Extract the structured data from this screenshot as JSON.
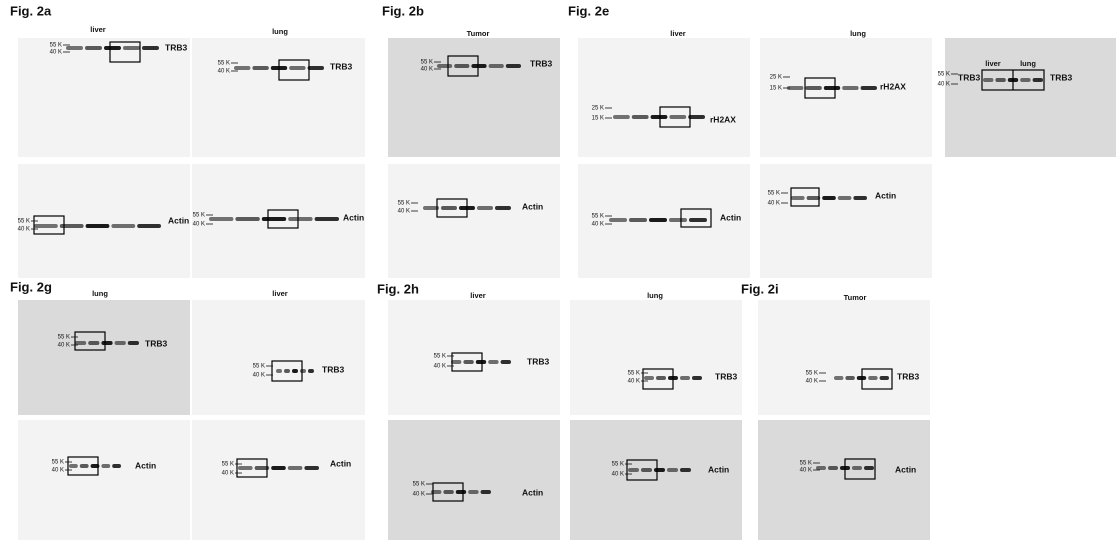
{
  "figures": [
    {
      "label": "Fig. 2a",
      "panels": [
        {
          "title": "liver",
          "markers": [
            "55 K",
            "40 K"
          ],
          "labels": [
            "TRB3"
          ]
        },
        {
          "title": "lung",
          "markers": [
            "55 K",
            "40 K"
          ],
          "labels": [
            "TRB3"
          ]
        },
        {
          "markers": [
            "55 K",
            "40 K"
          ],
          "labels": [
            "Actin"
          ]
        },
        {
          "markers": [
            "55 K",
            "40 K"
          ],
          "labels": [
            "Actin"
          ]
        }
      ]
    },
    {
      "label": "Fig. 2b",
      "panels": [
        {
          "title": "Tumor",
          "markers": [
            "55 K",
            "40 K"
          ],
          "labels": [
            "TRB3"
          ]
        },
        {
          "markers": [
            "55 K",
            "40 K"
          ],
          "labels": [
            "Actin"
          ]
        }
      ]
    },
    {
      "label": "Fig. 2e",
      "panels": [
        {
          "title": "liver",
          "markers": [
            "25 K",
            "15 K"
          ],
          "labels": [
            "rH2AX"
          ]
        },
        {
          "title": "lung",
          "markers": [
            "25 K",
            "15 K"
          ],
          "labels": [
            "rH2AX"
          ]
        },
        {
          "lanes": [
            "liver",
            "lung"
          ],
          "markers": [
            "55 K",
            "40 K"
          ],
          "labels": [
            "TRB3",
            "TRB3"
          ]
        },
        {
          "markers": [
            "55 K",
            "40 K"
          ],
          "labels": [
            "Actin"
          ]
        },
        {
          "markers": [
            "55 K",
            "40 K"
          ],
          "labels": [
            "Actin"
          ]
        }
      ]
    },
    {
      "label": "Fig. 2g",
      "panels": [
        {
          "title": "lung",
          "markers": [
            "55 K",
            "40 K"
          ],
          "labels": [
            "TRB3"
          ]
        },
        {
          "title": "liver",
          "markers": [
            "55 K",
            "40 K"
          ],
          "labels": [
            "TRB3"
          ]
        },
        {
          "markers": [
            "55 K",
            "40 K"
          ],
          "labels": [
            "Actin"
          ]
        },
        {
          "markers": [
            "55 K",
            "40 K"
          ],
          "labels": [
            "Actin"
          ]
        }
      ]
    },
    {
      "label": "Fig. 2h",
      "panels": [
        {
          "title": "liver",
          "markers": [
            "55 K",
            "40 K"
          ],
          "labels": [
            "TRB3"
          ]
        },
        {
          "title": "lung",
          "markers": [
            "55 K",
            "40 K"
          ],
          "labels": [
            "TRB3"
          ]
        },
        {
          "markers": [
            "55 K",
            "40 K"
          ],
          "labels": [
            "Actin"
          ]
        },
        {
          "markers": [
            "55 K",
            "40 K"
          ],
          "labels": [
            "Actin"
          ]
        }
      ]
    },
    {
      "label": "Fig. 2i",
      "panels": [
        {
          "title": "Tumor",
          "markers": [
            "55 K",
            "40 K"
          ],
          "labels": [
            "TRB3"
          ]
        },
        {
          "markers": [
            "55 K",
            "40 K"
          ],
          "labels": [
            "Actin"
          ]
        }
      ]
    }
  ]
}
